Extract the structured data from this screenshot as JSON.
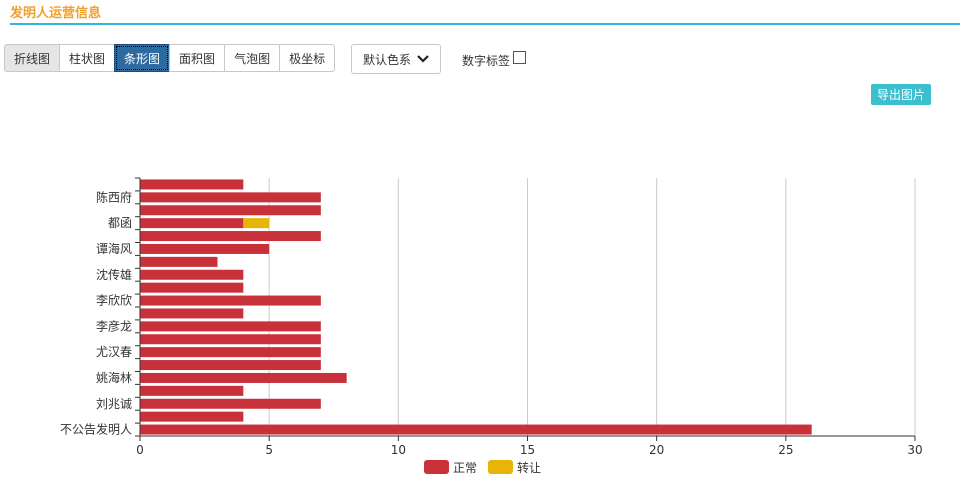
{
  "header": {
    "title": "发明人运营信息"
  },
  "chart_types": [
    "折线图",
    "柱状图",
    "条形图",
    "面积图",
    "气泡图",
    "极坐标"
  ],
  "active_chart_type_index": 2,
  "color_scheme": {
    "label": "默认色系"
  },
  "number_label": {
    "label": "数字标签",
    "checked": false
  },
  "export_button": {
    "label": "导出图片"
  },
  "colors": {
    "normal": "#c8303a",
    "transfer": "#e8b408",
    "accent": "#2bb5e6",
    "title": "#f0a030"
  },
  "chart_data": {
    "type": "bar",
    "orientation": "horizontal",
    "stacked": true,
    "categories": [
      "",
      "陈西府",
      "",
      "都函",
      "",
      "谭海风",
      "",
      "沈传雄",
      "",
      "李欣欣",
      "",
      "李彦龙",
      "",
      "尤汉春",
      "",
      "姚海林",
      "",
      "刘兆诚",
      "",
      "不公告发明人"
    ],
    "series": [
      {
        "name": "正常",
        "values": [
          4,
          7,
          7,
          4,
          7,
          5,
          3,
          4,
          4,
          7,
          4,
          7,
          7,
          7,
          7,
          8,
          4,
          7,
          4,
          26
        ]
      },
      {
        "name": "转让",
        "values": [
          0,
          0,
          0,
          1,
          0,
          0,
          0,
          0,
          0,
          0,
          0,
          0,
          0,
          0,
          0,
          0,
          0,
          0,
          0,
          0
        ]
      }
    ],
    "xlim": [
      0,
      30
    ],
    "xticks": [
      0,
      5,
      10,
      15,
      20,
      25,
      30
    ],
    "grid": true,
    "legend": "bottom-center"
  }
}
